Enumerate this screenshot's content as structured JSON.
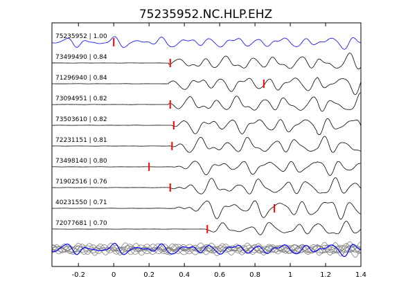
{
  "chart_data": {
    "type": "line",
    "title": "75235952.NC.HLP.EHZ",
    "xlabel": "",
    "ylabel": "",
    "xlim": [
      -0.35,
      1.4
    ],
    "xticks": [
      "-0.2",
      "0",
      "0.2",
      "0.4",
      "0.6",
      "0.8",
      "1",
      "1.2",
      "1.4"
    ],
    "xtick_values": [
      -0.2,
      0,
      0.2,
      0.4,
      0.6,
      0.8,
      1.0,
      1.2,
      1.4
    ],
    "grid": false,
    "legend": "none",
    "colors": {
      "reference": "#0000ff",
      "trace": "#000000",
      "pick": "#ff0000",
      "stack": "#808080"
    },
    "series": [
      {
        "label": "75235952 | 1.00",
        "pick": 0.0,
        "onset": -0.35,
        "amp": 0.55,
        "color": "reference"
      },
      {
        "label": "73499490 | 0.84",
        "pick": 0.32,
        "onset": 0.31,
        "amp": 0.75,
        "color": "trace"
      },
      {
        "label": "71296940 | 0.84",
        "pick": 0.85,
        "onset": 0.31,
        "amp": 0.8,
        "color": "trace"
      },
      {
        "label": "73094951 | 0.82",
        "pick": 0.32,
        "onset": 0.31,
        "amp": 0.85,
        "color": "trace"
      },
      {
        "label": "73503610 | 0.82",
        "pick": 0.34,
        "onset": 0.33,
        "amp": 0.85,
        "color": "trace"
      },
      {
        "label": "72231151 | 0.81",
        "pick": 0.33,
        "onset": 0.31,
        "amp": 0.85,
        "color": "trace"
      },
      {
        "label": "73498140 | 0.80",
        "pick": 0.2,
        "onset": 0.33,
        "amp": 0.75,
        "color": "trace"
      },
      {
        "label": "71902516 | 0.76",
        "pick": 0.32,
        "onset": 0.32,
        "amp": 0.85,
        "color": "trace"
      },
      {
        "label": "40231550 | 0.71",
        "pick": 0.91,
        "onset": 0.35,
        "amp": 0.95,
        "color": "trace"
      },
      {
        "label": "72077681 | 0.70",
        "pick": 0.53,
        "onset": 0.52,
        "amp": 0.7,
        "color": "trace"
      }
    ],
    "stack": {
      "count": 10,
      "reference_overlay": true
    }
  }
}
